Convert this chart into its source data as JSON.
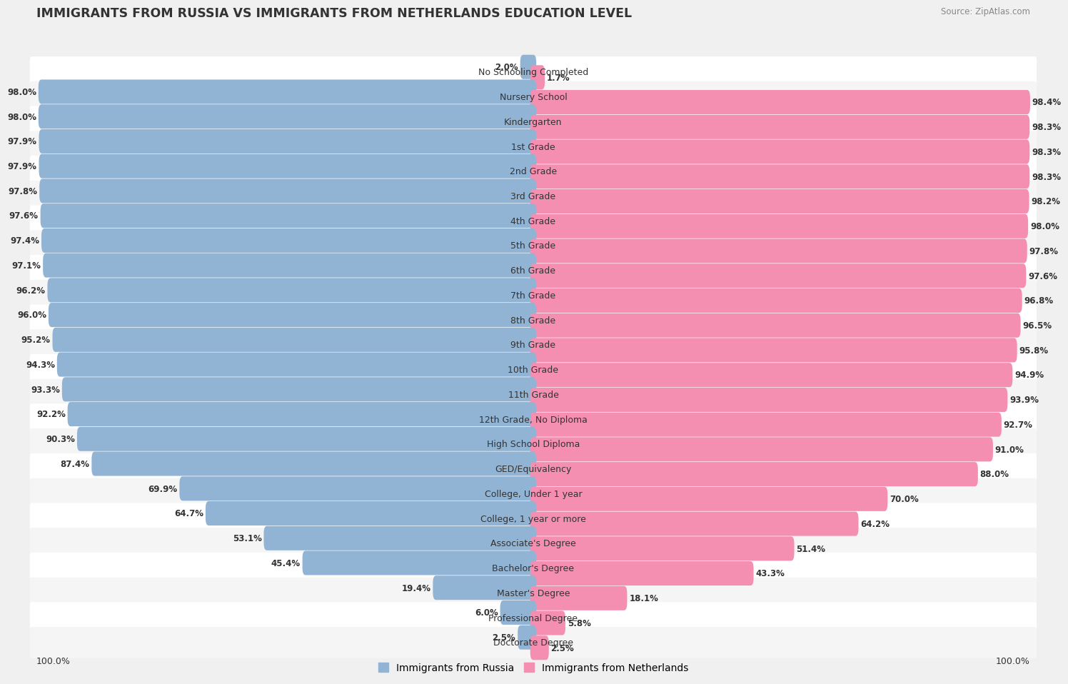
{
  "title": "IMMIGRANTS FROM RUSSIA VS IMMIGRANTS FROM NETHERLANDS EDUCATION LEVEL",
  "source": "Source: ZipAtlas.com",
  "categories": [
    "No Schooling Completed",
    "Nursery School",
    "Kindergarten",
    "1st Grade",
    "2nd Grade",
    "3rd Grade",
    "4th Grade",
    "5th Grade",
    "6th Grade",
    "7th Grade",
    "8th Grade",
    "9th Grade",
    "10th Grade",
    "11th Grade",
    "12th Grade, No Diploma",
    "High School Diploma",
    "GED/Equivalency",
    "College, Under 1 year",
    "College, 1 year or more",
    "Associate's Degree",
    "Bachelor's Degree",
    "Master's Degree",
    "Professional Degree",
    "Doctorate Degree"
  ],
  "russia_values": [
    2.0,
    98.0,
    98.0,
    97.9,
    97.9,
    97.8,
    97.6,
    97.4,
    97.1,
    96.2,
    96.0,
    95.2,
    94.3,
    93.3,
    92.2,
    90.3,
    87.4,
    69.9,
    64.7,
    53.1,
    45.4,
    19.4,
    6.0,
    2.5
  ],
  "netherlands_values": [
    1.7,
    98.4,
    98.3,
    98.3,
    98.3,
    98.2,
    98.0,
    97.8,
    97.6,
    96.8,
    96.5,
    95.8,
    94.9,
    93.9,
    92.7,
    91.0,
    88.0,
    70.0,
    64.2,
    51.4,
    43.3,
    18.1,
    5.8,
    2.5
  ],
  "russia_color": "#92b4d4",
  "netherlands_color": "#f48fb1",
  "background_color": "#f0f0f0",
  "bar_bg_color_even": "#ffffff",
  "bar_bg_color_odd": "#f5f5f5",
  "legend_russia": "Immigrants from Russia",
  "legend_netherlands": "Immigrants from Netherlands",
  "label_fontsize": 9.0,
  "value_fontsize": 8.5,
  "title_fontsize": 12.5
}
